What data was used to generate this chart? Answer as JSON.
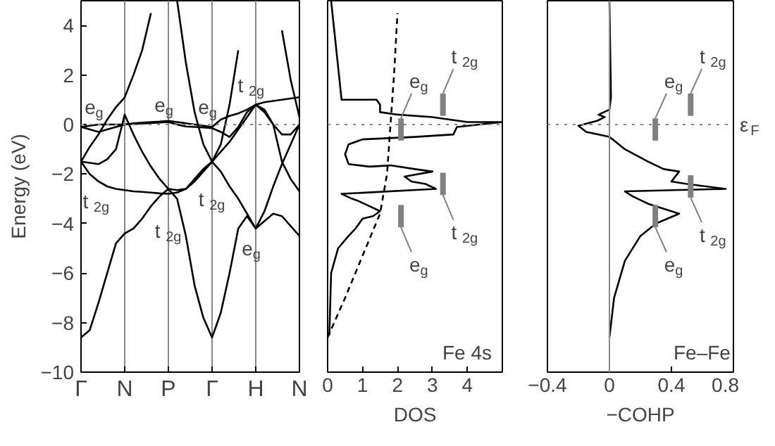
{
  "chart_data": [
    {
      "type": "line",
      "ylabel": "Energy (eV)",
      "categories": [
        "Γ",
        null,
        null,
        null,
        null,
        "N",
        null,
        null,
        null,
        null,
        "P",
        null,
        null,
        null,
        null,
        "Γ",
        null,
        null,
        null,
        null,
        "H",
        null,
        null,
        null,
        null,
        "N"
      ],
      "ylim": [
        -10,
        5
      ],
      "yticks": [
        {
          "value": -10,
          "label": "−10"
        },
        {
          "value": -8,
          "label": "−8"
        },
        {
          "value": -6,
          "label": "−6"
        },
        {
          "value": -4,
          "label": "−4"
        },
        {
          "value": -2,
          "label": "−2"
        },
        0,
        2,
        4
      ],
      "grid": "x",
      "line_style": "solid",
      "series": [
        {
          "color": "#000000",
          "values": [
            -8.6,
            -8.3,
            -7.2,
            -6.0,
            -4.8,
            -4.4,
            -4.2,
            -3.8,
            -3.3,
            -2.9,
            -2.6,
            -3.0,
            -4.5,
            -6.5,
            -7.8,
            -8.6,
            -7.6,
            -6.0,
            -4.2,
            -3.7,
            -4.2,
            -3.9,
            -3.6,
            -3.7,
            -4.1,
            -4.5
          ]
        },
        {
          "color": "#000000",
          "values": [
            -1.5,
            -2.0,
            -2.3,
            -2.5,
            -2.6,
            -2.65,
            -2.7,
            -2.72,
            -2.75,
            -2.78,
            -2.8,
            -2.75,
            -2.6,
            -2.2,
            -1.8,
            -1.5,
            -1.1,
            -0.7,
            -0.2,
            0.3,
            0.8,
            0.6,
            0.0,
            -1.5,
            -2.2,
            -2.7
          ]
        },
        {
          "color": "#000000",
          "values": [
            -1.5,
            -1.55,
            -1.6,
            -1.4,
            -1.0,
            0.4,
            -0.4,
            -1.1,
            -1.7,
            -2.2,
            -2.6,
            -2.65,
            -2.6,
            -2.3,
            -1.9,
            -1.5,
            -1.9,
            -2.5,
            -3.0,
            -3.6,
            -4.2,
            -3.5,
            -2.5,
            -1.6,
            -0.8,
            0.0
          ]
        },
        {
          "color": "#000000",
          "values": [
            -1.5,
            -0.9,
            -0.4,
            0.2,
            0.7,
            1.1,
            2.0,
            3.0,
            4.5,
            null,
            null,
            null,
            null,
            null,
            null,
            null,
            null,
            null,
            null,
            null,
            null,
            null,
            null,
            null,
            null,
            null
          ]
        },
        {
          "color": "#000000",
          "values": [
            null,
            null,
            null,
            null,
            null,
            null,
            null,
            null,
            null,
            null,
            null,
            5.0,
            2.5,
            0.5,
            -0.8,
            -1.5,
            -0.8,
            0.8,
            3.0,
            null,
            null,
            null,
            null,
            null,
            null,
            null
          ]
        },
        {
          "color": "#000000",
          "values": [
            null,
            null,
            null,
            null,
            null,
            null,
            null,
            null,
            null,
            null,
            null,
            null,
            null,
            null,
            null,
            null,
            null,
            null,
            null,
            null,
            null,
            null,
            null,
            3.8,
            1.8,
            0.3
          ]
        },
        {
          "color": "#000000",
          "values": [
            -0.1,
            -0.2,
            -0.3,
            -0.2,
            -0.1,
            0.0,
            0.05,
            0.08,
            0.1,
            0.12,
            0.15,
            0.1,
            0.05,
            0.0,
            -0.05,
            -0.1,
            0.2,
            0.35,
            0.45,
            0.6,
            0.8,
            0.9,
            0.95,
            1.0,
            1.05,
            1.1
          ]
        },
        {
          "color": "#000000",
          "values": [
            -0.1,
            -0.05,
            0.0,
            0.0,
            0.0,
            0.0,
            0.02,
            0.04,
            0.06,
            0.08,
            0.1,
            0.0,
            -0.08,
            -0.1,
            -0.12,
            -0.15,
            -0.3,
            -0.5,
            -0.1,
            0.5,
            0.8,
            0.5,
            0.0,
            -0.4,
            -0.4,
            0.0
          ]
        }
      ],
      "ref_lines": [
        {
          "axis": "y",
          "value": 0,
          "color": "#888888",
          "line_style": "dotted"
        }
      ],
      "annotations": [
        "e$_{g}$",
        "t$_{2g}$",
        "e$_{g}$",
        "e$_{g}$",
        "t$_{2g}$",
        "t$_{2g}$",
        "t$_{2g}$",
        "e$_{g}$"
      ]
    },
    {
      "type": "line",
      "xlabel": "DOS",
      "xlim": [
        0,
        5
      ],
      "ylim": [
        -10,
        5
      ],
      "xticks": [
        0,
        1,
        2,
        3,
        4
      ],
      "tick_labels": "x",
      "grid": false,
      "series": [
        {
          "color": "#000000",
          "line_style": "solid",
          "x": [
            0.1,
            0.4,
            1.4,
            1.5,
            1.5,
            2.0,
            3.0,
            4.0,
            5.0,
            3.7,
            3.6,
            2.5,
            1.0,
            0.6,
            0.5,
            0.6,
            1.2,
            1.8,
            2.5,
            3.0,
            2.2,
            2.4,
            2.8,
            3.1,
            0.4,
            0.7,
            0.9,
            1.2,
            1.5,
            1.3,
            1.0,
            0.8,
            0.6,
            0.3,
            0.1,
            0.05
          ],
          "values": [
            5,
            1.0,
            1.0,
            0.8,
            0.5,
            0.4,
            0.3,
            0.1,
            0.1,
            -0.1,
            -0.4,
            -0.5,
            -0.6,
            -0.8,
            -1.2,
            -1.6,
            -1.7,
            -1.65,
            -1.8,
            -1.9,
            -2.1,
            -2.3,
            -2.4,
            -2.6,
            -2.8,
            -3.0,
            -3.1,
            -3.3,
            -3.5,
            -3.7,
            -3.8,
            -4.2,
            -4.5,
            -5.0,
            -6.0,
            -8.5
          ]
        },
        {
          "color": "#000000",
          "line_style": "dashed",
          "x": [
            0,
            0.5,
            1.0,
            1.5,
            1.7,
            1.8,
            1.9,
            2.0
          ],
          "values": [
            -8.6,
            -7,
            -5.3,
            -3.6,
            -2,
            0,
            2,
            4.5
          ]
        }
      ],
      "ref_lines": [
        {
          "axis": "y",
          "value": 0,
          "color": "#888888",
          "line_style": "dotted"
        }
      ],
      "annotations": [
        "e$_{g}$",
        "t$_{2g}$",
        "t$_{2g}$",
        "e$_{g}$",
        "Fe 4s"
      ]
    },
    {
      "type": "line",
      "xlabel": "−COHP",
      "xlim": [
        -0.4,
        0.8
      ],
      "ylim": [
        -10,
        5
      ],
      "xticks": [
        {
          "value": -0.4,
          "label": "−0.4"
        },
        0,
        0.4,
        0.8
      ],
      "tick_labels": "x",
      "grid": false,
      "series": [
        {
          "color": "#000000",
          "line_style": "solid",
          "x": [
            0.0,
            0.01,
            0.0,
            -0.07,
            -0.03,
            -0.08,
            -0.2,
            -0.15,
            0.0,
            0.1,
            0.25,
            0.35,
            0.45,
            0.4,
            0.5,
            0.75,
            0.1,
            0.15,
            0.25,
            0.45,
            0.3,
            0.2,
            0.1,
            0.03,
            0.0
          ],
          "values": [
            5,
            1.1,
            0.6,
            0.4,
            0.3,
            0.15,
            -0.05,
            -0.3,
            -0.5,
            -1.0,
            -1.5,
            -1.8,
            -1.9,
            -2.3,
            -2.4,
            -2.6,
            -2.7,
            -2.9,
            -3.2,
            -3.6,
            -4.0,
            -4.5,
            -5.5,
            -7,
            -8.6
          ]
        }
      ],
      "ref_lines": [
        {
          "axis": "y",
          "value": 0,
          "color": "#888888",
          "line_style": "dotted",
          "label": "ε$_{F}$"
        },
        {
          "axis": "x",
          "value": 0,
          "color": "#888888",
          "line_style": "solid"
        }
      ],
      "annotations": [
        "e$_{g}$",
        "t$_{2g}$",
        "t$_{2g}$",
        "e$_{g}$",
        "Fe–Fe"
      ]
    }
  ]
}
